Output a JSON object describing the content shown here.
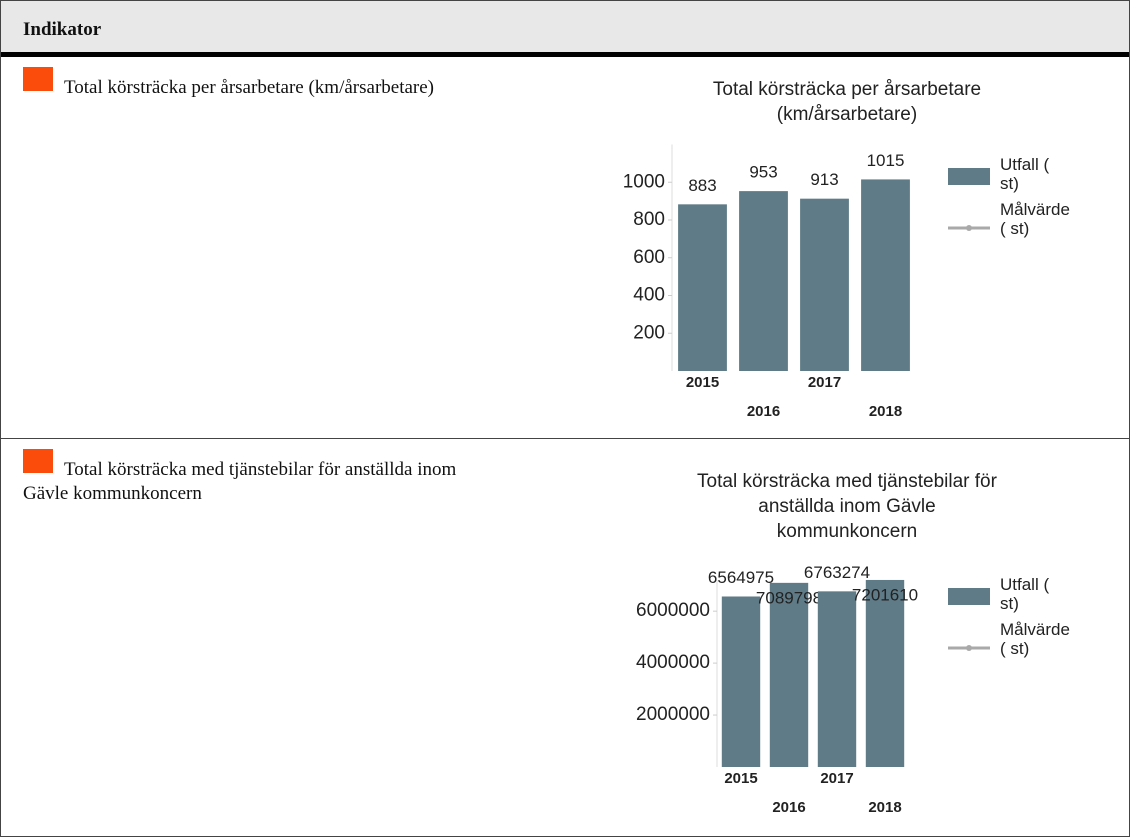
{
  "header": {
    "title": "Indikator"
  },
  "rows": [
    {
      "label": "Total körsträcka per årsarbetare (km/årsarbetare)"
    },
    {
      "label": "Total körsträcka med tjänstebilar för anställda inom Gävle kommunkoncern"
    }
  ],
  "chart_data": [
    {
      "type": "bar",
      "title": [
        "Total körsträcka per årsarbetare",
        "(km/årsarbetare)"
      ],
      "categories": [
        "2015",
        "2016",
        "2017",
        "2018"
      ],
      "series": [
        {
          "name": "Utfall ( st)",
          "color": "#5f7b87",
          "values": [
            883,
            953,
            913,
            1015
          ]
        },
        {
          "name": "Målvärde ( st)",
          "color": "#a9a9a9",
          "values": [
            null,
            null,
            null,
            null
          ]
        }
      ],
      "ylim": [
        0,
        1200
      ],
      "yticks": [
        200,
        400,
        600,
        800,
        1000
      ]
    },
    {
      "type": "bar",
      "title": [
        "Total körsträcka med tjänstebilar för",
        "anställda inom Gävle",
        "kommunkoncern"
      ],
      "categories": [
        "2015",
        "2016",
        "2017",
        "2018"
      ],
      "series": [
        {
          "name": "Utfall ( st)",
          "color": "#5f7b87",
          "values": [
            6564975,
            7089798,
            6763274,
            7201610
          ]
        },
        {
          "name": "Målvärde ( st)",
          "color": "#a9a9a9",
          "values": [
            null,
            null,
            null,
            null
          ]
        }
      ],
      "ylim": [
        0,
        7200000
      ],
      "yticks": [
        2000000,
        4000000,
        6000000
      ]
    }
  ]
}
